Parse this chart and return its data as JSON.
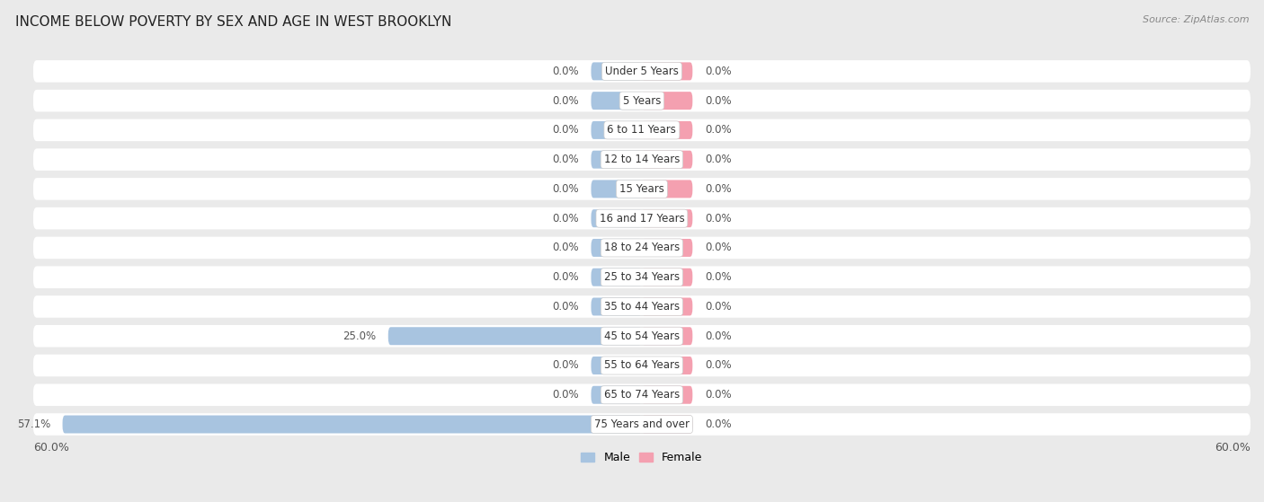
{
  "title": "INCOME BELOW POVERTY BY SEX AND AGE IN WEST BROOKLYN",
  "source": "Source: ZipAtlas.com",
  "categories": [
    "Under 5 Years",
    "5 Years",
    "6 to 11 Years",
    "12 to 14 Years",
    "15 Years",
    "16 and 17 Years",
    "18 to 24 Years",
    "25 to 34 Years",
    "35 to 44 Years",
    "45 to 54 Years",
    "55 to 64 Years",
    "65 to 74 Years",
    "75 Years and over"
  ],
  "male_values": [
    0.0,
    0.0,
    0.0,
    0.0,
    0.0,
    0.0,
    0.0,
    0.0,
    0.0,
    25.0,
    0.0,
    0.0,
    57.1
  ],
  "female_values": [
    0.0,
    0.0,
    0.0,
    0.0,
    0.0,
    0.0,
    0.0,
    0.0,
    0.0,
    0.0,
    0.0,
    0.0,
    0.0
  ],
  "male_color": "#a8c4e0",
  "female_color": "#f4a0b0",
  "male_label": "Male",
  "female_label": "Female",
  "xlim": 60.0,
  "page_bg_color": "#eaeaea",
  "row_bg_color": "#f0f0f0",
  "row_alt_bg_color": "#e8e8e8",
  "title_fontsize": 11,
  "source_fontsize": 8,
  "label_fontsize": 8.5,
  "tick_fontsize": 9,
  "category_fontsize": 8.5,
  "min_bar_pct": 5.0
}
